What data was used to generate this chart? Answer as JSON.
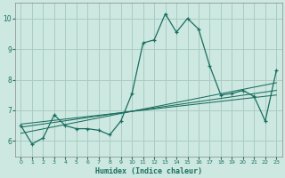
{
  "xlabel": "Humidex (Indice chaleur)",
  "background_color": "#cce8e0",
  "grid_color": "#aaccC4",
  "line_color": "#1a6e60",
  "xlim": [
    -0.5,
    23.5
  ],
  "ylim": [
    5.5,
    10.5
  ],
  "yticks": [
    6,
    7,
    8,
    9,
    10
  ],
  "xticks": [
    0,
    1,
    2,
    3,
    4,
    5,
    6,
    7,
    8,
    9,
    10,
    11,
    12,
    13,
    14,
    15,
    16,
    17,
    18,
    19,
    20,
    21,
    22,
    23
  ],
  "main_series_x": [
    0,
    1,
    2,
    3,
    4,
    5,
    6,
    7,
    8,
    9,
    10,
    11,
    12,
    13,
    14,
    15,
    16,
    17,
    18,
    19,
    20,
    21,
    22,
    23
  ],
  "main_series_y": [
    6.5,
    5.9,
    6.1,
    6.85,
    6.5,
    6.4,
    6.4,
    6.35,
    6.2,
    6.65,
    7.55,
    9.2,
    9.3,
    10.15,
    9.55,
    10.0,
    9.65,
    8.45,
    7.5,
    7.55,
    7.65,
    7.45,
    6.65,
    8.3
  ],
  "reg_lines": [
    [
      [
        0,
        23
      ],
      [
        6.25,
        7.9
      ]
    ],
    [
      [
        0,
        23
      ],
      [
        6.45,
        7.65
      ]
    ],
    [
      [
        0,
        23
      ],
      [
        6.55,
        7.5
      ]
    ]
  ]
}
